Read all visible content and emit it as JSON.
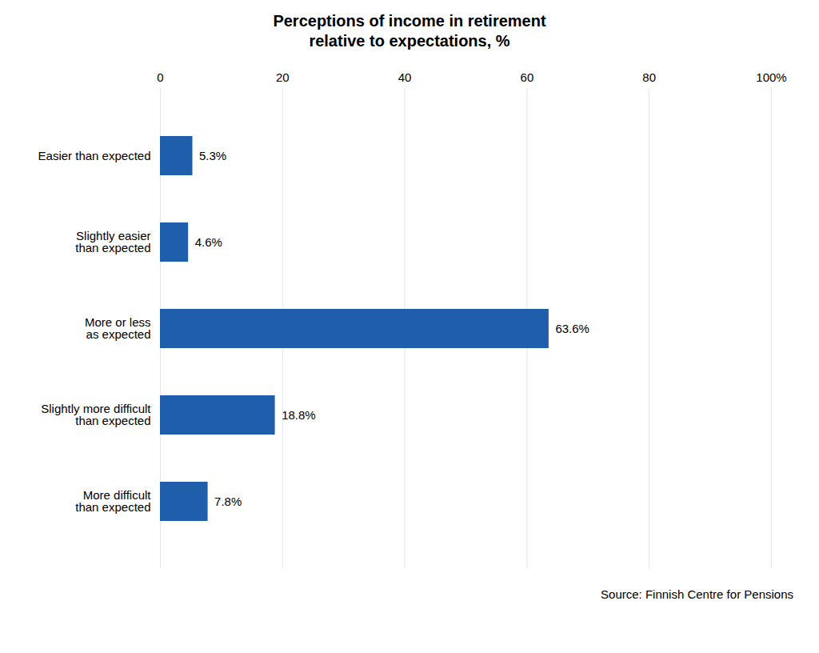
{
  "chart_data": {
    "type": "bar",
    "orientation": "horizontal",
    "title": "Perceptions of income in retirement\nrelative to expectations, %",
    "categories": [
      "Easier than expected",
      "Slightly easier\nthan expected",
      "More or less\nas expected",
      "Slightly more difficult\nthan expected",
      "More difficult\nthan expected"
    ],
    "values": [
      5.3,
      4.6,
      63.6,
      18.8,
      7.8
    ],
    "value_labels": [
      "5.3%",
      "4.6%",
      "63.6%",
      "18.8%",
      "7.8%"
    ],
    "data_labels": true,
    "color": "#1F5EAA",
    "xlim": [
      0,
      100
    ],
    "xticks": [
      0,
      20,
      40,
      60,
      80,
      {
        "value": 100,
        "label": "100%"
      }
    ],
    "grid": true,
    "annotation": "Source: Finnish Centre for Pensions"
  }
}
